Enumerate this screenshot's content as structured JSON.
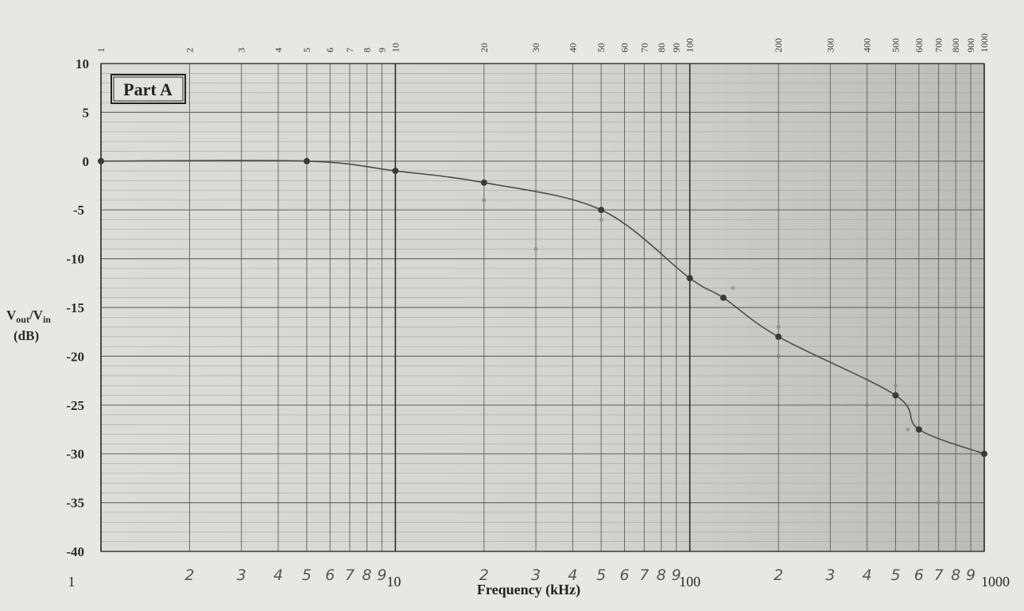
{
  "chart_data": {
    "type": "line",
    "title": "Part A",
    "xlabel": "Frequency (kHz)",
    "ylabel": {
      "main": "V",
      "sub1": "out",
      "sep": "/V",
      "sub2": "in",
      "units": "(dB)"
    },
    "x_scale": "log",
    "xlim": [
      1,
      1000
    ],
    "ylim": [
      -40,
      10
    ],
    "grid": true,
    "y_ticks": [
      "10",
      "5",
      "0",
      "-5",
      "-10",
      "-15",
      "-20",
      "-25",
      "-30",
      "-35",
      "-40"
    ],
    "y_tick_values": [
      10,
      5,
      0,
      -5,
      -10,
      -15,
      -20,
      -25,
      -30,
      -35,
      -40
    ],
    "x_ticks_bottom": [
      {
        "value": 1,
        "label": "1",
        "style": "std"
      },
      {
        "value": 2,
        "label": "2",
        "style": "hand"
      },
      {
        "value": 3,
        "label": "3",
        "style": "hand"
      },
      {
        "value": 4,
        "label": "4",
        "style": "hand"
      },
      {
        "value": 5,
        "label": "5",
        "style": "hand"
      },
      {
        "value": 6,
        "label": "6",
        "style": "hand"
      },
      {
        "value": 7,
        "label": "7",
        "style": "hand"
      },
      {
        "value": 8,
        "label": "8",
        "style": "hand"
      },
      {
        "value": 9,
        "label": "9",
        "style": "hand"
      },
      {
        "value": 10,
        "label": "10",
        "style": "std"
      },
      {
        "value": 20,
        "label": "2",
        "style": "hand"
      },
      {
        "value": 30,
        "label": "3",
        "style": "hand"
      },
      {
        "value": 40,
        "label": "4",
        "style": "hand"
      },
      {
        "value": 50,
        "label": "5",
        "style": "hand"
      },
      {
        "value": 60,
        "label": "6",
        "style": "hand"
      },
      {
        "value": 70,
        "label": "7",
        "style": "hand"
      },
      {
        "value": 80,
        "label": "8",
        "style": "hand"
      },
      {
        "value": 90,
        "label": "9",
        "style": "hand"
      },
      {
        "value": 100,
        "label": "100",
        "style": "std"
      },
      {
        "value": 200,
        "label": "2",
        "style": "hand"
      },
      {
        "value": 300,
        "label": "3",
        "style": "hand"
      },
      {
        "value": 400,
        "label": "4",
        "style": "hand"
      },
      {
        "value": 500,
        "label": "5",
        "style": "hand"
      },
      {
        "value": 600,
        "label": "6",
        "style": "hand"
      },
      {
        "value": 700,
        "label": "7",
        "style": "hand"
      },
      {
        "value": 800,
        "label": "8",
        "style": "hand"
      },
      {
        "value": 900,
        "label": "9",
        "style": "hand"
      },
      {
        "value": 1000,
        "label": "1000",
        "style": "std"
      }
    ],
    "x_ticks_top": [
      {
        "value": 1,
        "label": "1"
      },
      {
        "value": 2,
        "label": "2"
      },
      {
        "value": 3,
        "label": "3"
      },
      {
        "value": 4,
        "label": "4"
      },
      {
        "value": 5,
        "label": "5"
      },
      {
        "value": 6,
        "label": "6"
      },
      {
        "value": 7,
        "label": "7"
      },
      {
        "value": 8,
        "label": "8"
      },
      {
        "value": 9,
        "label": "9"
      },
      {
        "value": 10,
        "label": "10"
      },
      {
        "value": 20,
        "label": "20"
      },
      {
        "value": 30,
        "label": "30"
      },
      {
        "value": 40,
        "label": "40"
      },
      {
        "value": 50,
        "label": "50"
      },
      {
        "value": 60,
        "label": "60"
      },
      {
        "value": 70,
        "label": "70"
      },
      {
        "value": 80,
        "label": "80"
      },
      {
        "value": 90,
        "label": "90"
      },
      {
        "value": 100,
        "label": "100"
      },
      {
        "value": 200,
        "label": "200"
      },
      {
        "value": 300,
        "label": "300"
      },
      {
        "value": 400,
        "label": "400"
      },
      {
        "value": 500,
        "label": "500"
      },
      {
        "value": 600,
        "label": "600"
      },
      {
        "value": 700,
        "label": "700"
      },
      {
        "value": 800,
        "label": "800"
      },
      {
        "value": 900,
        "label": "900"
      },
      {
        "value": 1000,
        "label": "1000"
      }
    ],
    "series": [
      {
        "x": [
          1,
          5,
          10,
          20,
          50,
          100,
          130,
          200,
          500,
          600,
          1000
        ],
        "y": [
          0,
          0,
          -1,
          -2.2,
          -5,
          -12,
          -14,
          -18,
          -24,
          -27.5,
          -30
        ]
      }
    ],
    "faint_points": {
      "x": [
        20,
        30,
        50,
        140,
        200,
        200,
        400,
        500,
        550,
        700
      ],
      "y": [
        -4,
        -9,
        -6,
        -13,
        -17,
        -20,
        -25,
        -23,
        -27.5,
        -35
      ]
    },
    "colors": {
      "background": "#e9e7e3",
      "plot_fill": "#d3d1cd",
      "grid_minor": "#a8a6a2",
      "grid_major": "#2b2b2b",
      "curve": "#4d4d4d",
      "point": "#3a3a3a"
    }
  }
}
